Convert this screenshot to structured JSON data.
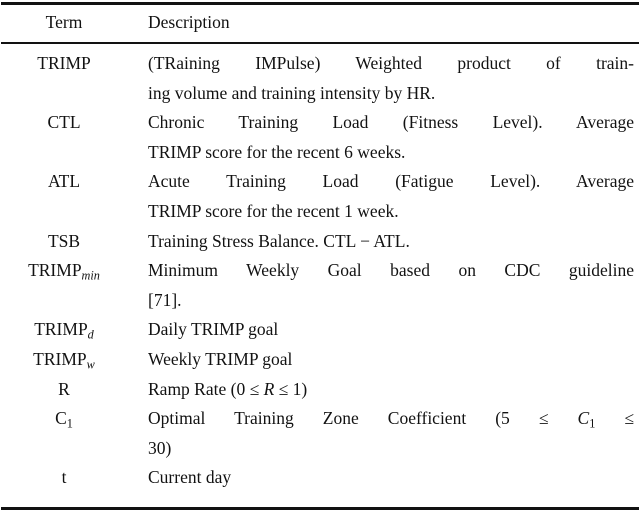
{
  "colors": {
    "background": "#ffffff",
    "text": "#121212",
    "rule": "#121212"
  },
  "table": {
    "header": {
      "term": "Term",
      "description": "Description"
    },
    "rows": [
      {
        "term": [
          {
            "t": "TRIMP"
          }
        ],
        "desc_lines": [
          {
            "justify": true,
            "segments": [
              {
                "t": "(TRaining IMPulse) Weighted product of train-"
              }
            ]
          },
          {
            "justify": false,
            "segments": [
              {
                "t": "ing volume and training intensity by HR."
              }
            ]
          }
        ]
      },
      {
        "term": [
          {
            "t": "CTL"
          }
        ],
        "desc_lines": [
          {
            "justify": true,
            "segments": [
              {
                "t": "Chronic Training Load (Fitness Level). Average"
              }
            ]
          },
          {
            "justify": false,
            "segments": [
              {
                "t": "TRIMP score for the recent 6 weeks."
              }
            ]
          }
        ]
      },
      {
        "term": [
          {
            "t": "ATL"
          }
        ],
        "desc_lines": [
          {
            "justify": true,
            "segments": [
              {
                "t": "Acute Training Load (Fatigue Level). Average"
              }
            ]
          },
          {
            "justify": false,
            "segments": [
              {
                "t": "TRIMP score for the recent 1 week."
              }
            ]
          }
        ]
      },
      {
        "term": [
          {
            "t": "TSB"
          }
        ],
        "desc_lines": [
          {
            "justify": false,
            "segments": [
              {
                "t": "Training Stress Balance. CTL − ATL."
              }
            ]
          }
        ]
      },
      {
        "term": [
          {
            "t": "TRIMP"
          },
          {
            "t": "min",
            "style": "sub-italic"
          }
        ],
        "desc_lines": [
          {
            "justify": true,
            "segments": [
              {
                "t": "Minimum Weekly Goal based on CDC guideline"
              }
            ]
          },
          {
            "justify": false,
            "segments": [
              {
                "t": "[71]."
              }
            ]
          }
        ]
      },
      {
        "term": [
          {
            "t": "TRIMP"
          },
          {
            "t": "d",
            "style": "sub-italic"
          }
        ],
        "desc_lines": [
          {
            "justify": false,
            "segments": [
              {
                "t": "Daily TRIMP goal"
              }
            ]
          }
        ]
      },
      {
        "term": [
          {
            "t": "TRIMP"
          },
          {
            "t": "w",
            "style": "sub-italic"
          }
        ],
        "desc_lines": [
          {
            "justify": false,
            "segments": [
              {
                "t": "Weekly TRIMP goal"
              }
            ]
          }
        ]
      },
      {
        "term": [
          {
            "t": "R"
          }
        ],
        "desc_lines": [
          {
            "justify": false,
            "segments": [
              {
                "t": "Ramp Rate (0 ≤ "
              },
              {
                "t": "R",
                "style": "italic"
              },
              {
                "t": " ≤ 1)"
              }
            ]
          }
        ]
      },
      {
        "term": [
          {
            "t": "C"
          },
          {
            "t": "1",
            "style": "sub"
          }
        ],
        "desc_lines": [
          {
            "justify": true,
            "segments": [
              {
                "t": "Optimal Training Zone Coefficient (5 ≤ "
              },
              {
                "t": "C",
                "style": "italic"
              },
              {
                "t": "1",
                "style": "sub"
              },
              {
                "t": " ≤"
              }
            ]
          },
          {
            "justify": false,
            "segments": [
              {
                "t": "30)"
              }
            ]
          }
        ]
      },
      {
        "term": [
          {
            "t": "t"
          }
        ],
        "desc_lines": [
          {
            "justify": false,
            "segments": [
              {
                "t": "Current day"
              }
            ]
          }
        ]
      }
    ]
  }
}
